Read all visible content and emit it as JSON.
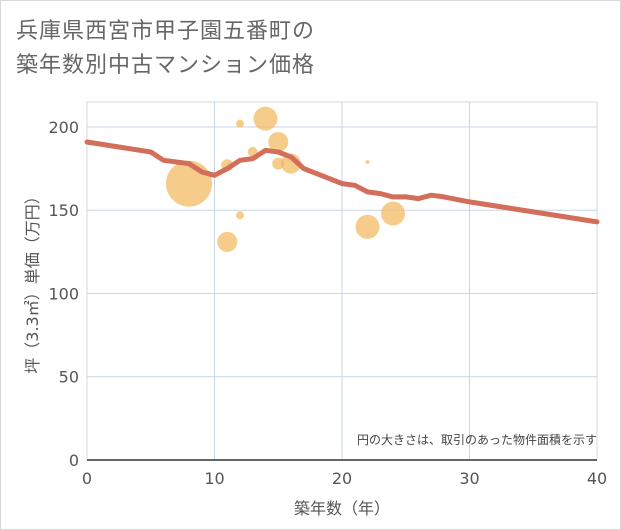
{
  "title_lines": [
    "兵庫県西宮市甲子園五番町の",
    "築年数別中古マンション価格"
  ],
  "chart_data": {
    "type": "scatter",
    "title": "兵庫県西宮市甲子園五番町の築年数別中古マンション価格",
    "xlabel": "築年数（年）",
    "ylabel": "坪（3.3㎡）単価（万円）",
    "xlim": [
      0,
      40
    ],
    "ylim": [
      0,
      215
    ],
    "xticks": [
      0,
      10,
      20,
      30,
      40
    ],
    "yticks": [
      0,
      50,
      100,
      150,
      200
    ],
    "grid": true,
    "note": "円の大きさは、取引のあった物件面積を示す",
    "bubble_color": "#f2b75a",
    "line_color": "#d36e5a",
    "bubbles": [
      {
        "x": 8,
        "y": 166,
        "size": 23
      },
      {
        "x": 11,
        "y": 131,
        "size": 10
      },
      {
        "x": 11,
        "y": 177,
        "size": 6
      },
      {
        "x": 12,
        "y": 202,
        "size": 4
      },
      {
        "x": 12,
        "y": 147,
        "size": 4
      },
      {
        "x": 13,
        "y": 185,
        "size": 5
      },
      {
        "x": 14,
        "y": 205,
        "size": 12
      },
      {
        "x": 15,
        "y": 191,
        "size": 10
      },
      {
        "x": 15,
        "y": 178,
        "size": 6
      },
      {
        "x": 16,
        "y": 178,
        "size": 10
      },
      {
        "x": 22,
        "y": 179,
        "size": 2
      },
      {
        "x": 22,
        "y": 140,
        "size": 12
      },
      {
        "x": 24,
        "y": 148,
        "size": 12
      }
    ],
    "trend": {
      "x": [
        0,
        5,
        6,
        8,
        9,
        10,
        11,
        12,
        13,
        14,
        15,
        16,
        17,
        18,
        19,
        20,
        21,
        22,
        23,
        24,
        25,
        26,
        27,
        28,
        30,
        35,
        40
      ],
      "y": [
        191,
        185,
        180,
        178,
        173,
        171,
        175,
        180,
        181,
        186,
        185,
        182,
        175,
        172,
        169,
        166,
        165,
        161,
        160,
        158,
        158,
        157,
        159,
        158,
        155,
        149,
        143
      ]
    }
  }
}
